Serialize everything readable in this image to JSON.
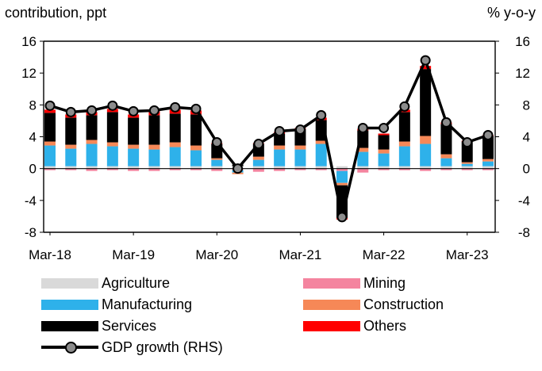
{
  "left_unit": "contribution,  ppt",
  "right_unit": "% y-o-y",
  "chart_data": {
    "type": "bar",
    "stacked": true,
    "x_tick_labels": [
      "Mar-18",
      "Mar-19",
      "Mar-20",
      "Mar-21",
      "Mar-22",
      "Mar-23"
    ],
    "categories": [
      "Q1-18",
      "Q2-18",
      "Q3-18",
      "Q4-18",
      "Q1-19",
      "Q2-19",
      "Q3-19",
      "Q4-19",
      "Q1-20",
      "Q2-20",
      "Q3-20",
      "Q4-20",
      "Q1-21",
      "Q2-21",
      "Q3-21",
      "Q4-21",
      "Q1-22",
      "Q2-22",
      "Q3-22",
      "Q4-22",
      "Q1-23",
      "Q2-23"
    ],
    "ylim": [
      -8,
      16
    ],
    "yticks": [
      -8,
      -4,
      0,
      4,
      8,
      12,
      16
    ],
    "y2lim": [
      -8,
      16
    ],
    "y2ticks": [
      -8,
      -4,
      0,
      4,
      8,
      12,
      16
    ],
    "series": [
      {
        "name": "Agriculture",
        "color": "#d9d9d9",
        "values": [
          0.3,
          0.3,
          0.3,
          0.3,
          0.3,
          0.3,
          0.3,
          0.3,
          0.3,
          0.3,
          0.3,
          0.3,
          0.3,
          0.3,
          0.3,
          0.3,
          0.3,
          0.3,
          0.3,
          0.3,
          0.3,
          0.3
        ]
      },
      {
        "name": "Mining",
        "color": "#f4849f",
        "values": [
          -0.2,
          -0.2,
          -0.3,
          -0.2,
          -0.3,
          -0.3,
          -0.2,
          -0.2,
          -0.3,
          -0.2,
          -0.4,
          -0.3,
          -0.2,
          -0.2,
          -0.3,
          -0.5,
          -0.2,
          -0.2,
          -0.3,
          -0.2,
          -0.2,
          -0.2
        ]
      },
      {
        "name": "Manufacturing",
        "color": "#2eb1ea",
        "values": [
          2.6,
          2.2,
          2.8,
          2.5,
          2.2,
          2.1,
          2.4,
          2.0,
          0.8,
          -0.3,
          0.8,
          2.1,
          2.1,
          2.8,
          -1.5,
          1.8,
          1.6,
          2.5,
          2.8,
          1.0,
          0.3,
          0.6
        ]
      },
      {
        "name": "Construction",
        "color": "#f68857",
        "values": [
          0.5,
          0.5,
          0.5,
          0.5,
          0.5,
          0.6,
          0.6,
          0.6,
          0.2,
          -0.2,
          0.4,
          0.5,
          0.5,
          0.4,
          -0.3,
          0.5,
          0.5,
          0.6,
          1.0,
          0.5,
          0.2,
          0.3
        ]
      },
      {
        "name": "Services",
        "color": "#000000",
        "values": [
          3.6,
          3.4,
          3.1,
          3.8,
          3.4,
          3.7,
          3.6,
          3.9,
          1.8,
          0.2,
          1.6,
          1.5,
          2.1,
          2.6,
          -4.1,
          2.2,
          1.8,
          3.7,
          8.4,
          3.8,
          2.6,
          2.9
        ]
      },
      {
        "name": "Others",
        "color": "#ff0000",
        "values": [
          0.4,
          0.4,
          0.4,
          0.4,
          0.4,
          0.5,
          0.5,
          0.5,
          0.1,
          0.0,
          0.1,
          0.2,
          0.1,
          0.3,
          -0.2,
          0.2,
          0.2,
          0.3,
          0.4,
          0.2,
          0.1,
          0.1
        ]
      }
    ],
    "line": {
      "name": "GDP growth (RHS)",
      "color": "#000000",
      "marker_color": "#8c8c8c",
      "values": [
        7.9,
        7.1,
        7.3,
        7.9,
        7.2,
        7.3,
        7.7,
        7.5,
        3.3,
        0.0,
        3.1,
        4.7,
        4.9,
        6.7,
        -6.1,
        5.1,
        5.1,
        7.8,
        13.6,
        5.8,
        3.3,
        4.2
      ]
    },
    "legend_placement": "bottom",
    "grid": false
  },
  "legend": {
    "agriculture": "Agriculture",
    "mining": "Mining",
    "manufacturing": "Manufacturing",
    "construction": "Construction",
    "services": "Services",
    "others": "Others",
    "gdp": "GDP growth (RHS)"
  }
}
